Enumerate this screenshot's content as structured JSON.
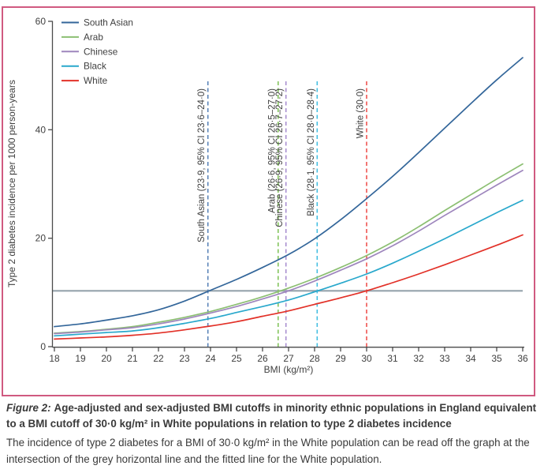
{
  "figure": {
    "frame_color": "#d05a80",
    "background_color": "#ffffff"
  },
  "chart_data": {
    "type": "line",
    "title": "",
    "xlabel": "BMI (kg/m²)",
    "ylabel": "Type 2 diabetes incidence per 1000 person-years",
    "xlim": [
      18,
      36
    ],
    "ylim": [
      0,
      60
    ],
    "x_ticks": [
      18,
      19,
      20,
      21,
      22,
      23,
      24,
      25,
      26,
      27,
      28,
      29,
      30,
      31,
      32,
      33,
      34,
      35,
      36
    ],
    "y_ticks": [
      0,
      20,
      40,
      60
    ],
    "grid": false,
    "legend_position": "top-left",
    "x": [
      18,
      19,
      20,
      21,
      22,
      23,
      24,
      25,
      26,
      27,
      28,
      29,
      30,
      31,
      32,
      33,
      34,
      35,
      36
    ],
    "series": [
      {
        "name": "South Asian",
        "color": "#33669a",
        "values": [
          3.7,
          4.2,
          4.9,
          5.7,
          6.8,
          8.4,
          10.4,
          12.4,
          14.6,
          17.0,
          19.9,
          23.4,
          27.3,
          31.4,
          35.8,
          40.3,
          44.8,
          49.2,
          53.3
        ]
      },
      {
        "name": "Arab",
        "color": "#8cbf72",
        "values": [
          2.5,
          2.8,
          3.2,
          3.7,
          4.5,
          5.4,
          6.5,
          7.8,
          9.2,
          10.8,
          12.6,
          14.6,
          16.8,
          19.3,
          22.1,
          25.1,
          28.0,
          30.9,
          33.7
        ]
      },
      {
        "name": "Chinese",
        "color": "#9e86bd",
        "values": [
          2.4,
          2.7,
          3.1,
          3.5,
          4.2,
          5.1,
          6.2,
          7.4,
          8.8,
          10.3,
          12.1,
          14.1,
          16.2,
          18.6,
          21.3,
          24.2,
          27.0,
          29.8,
          32.5
        ]
      },
      {
        "name": "Black",
        "color": "#29a8cc",
        "values": [
          2.0,
          2.3,
          2.6,
          2.9,
          3.5,
          4.3,
          5.2,
          6.3,
          7.4,
          8.6,
          10.1,
          11.7,
          13.4,
          15.4,
          17.6,
          19.9,
          22.3,
          24.7,
          27.0
        ]
      },
      {
        "name": "White",
        "color": "#e23128",
        "values": [
          1.4,
          1.6,
          1.8,
          2.1,
          2.5,
          3.1,
          3.8,
          4.6,
          5.6,
          6.6,
          7.8,
          9.0,
          10.3,
          11.8,
          13.4,
          15.1,
          16.9,
          18.7,
          20.6
        ]
      }
    ],
    "reference_line": {
      "y": 10.3,
      "color": "#95a3ac",
      "description": "grey horizontal line at White BMI 30·0 incidence"
    },
    "cutoff_lines": [
      {
        "x": 23.9,
        "label": "South Asian (23·9, 95% CI 23·6–24·0)",
        "color": "#5b84b8"
      },
      {
        "x": 26.6,
        "label": "Arab (26·6, 95% CI 26·5–27·0)",
        "color": "#84c45e"
      },
      {
        "x": 26.9,
        "label": "Chinese (26·9, 95% CI 26·7–27·2)",
        "color": "#a98fd0"
      },
      {
        "x": 28.1,
        "label": "Black (28·1, 95% CI 28·0–28·4)",
        "color": "#45bfe2"
      },
      {
        "x": 30.0,
        "label": "White (30·0)",
        "color": "#ee5350"
      }
    ],
    "style": {
      "axis_color": "#4b4b4b",
      "text_color": "#3f3f3f"
    }
  },
  "caption": {
    "figure_label": "Figure 2:",
    "title": "Age-adjusted and sex-adjusted BMI cutoffs in minority ethnic populations in England equivalent to a BMI cutoff of 30·0 kg/m² in White populations in relation to type 2 diabetes incidence",
    "body": "The incidence of type 2 diabetes for a BMI of 30·0 kg/m² in the White population can be read off the graph at the intersection of the grey horizontal line and the fitted line for the White population."
  }
}
